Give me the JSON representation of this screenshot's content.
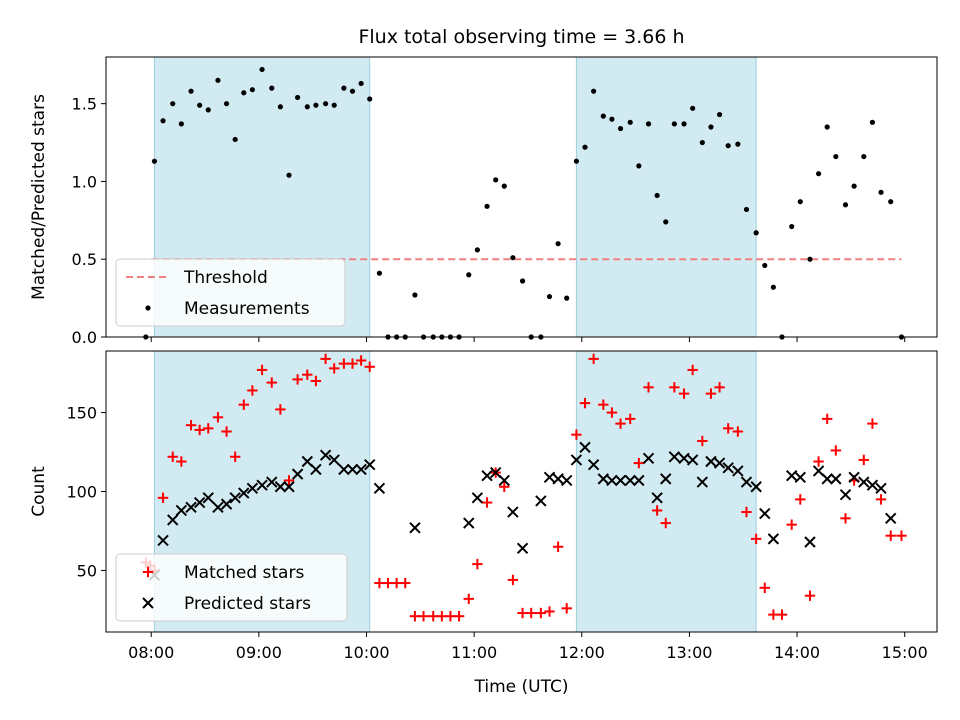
{
  "chart_data": [
    {
      "type": "scatter",
      "title": "Flux total observing time = 3.66 h",
      "xlabel": "",
      "ylabel": "Matched/Predicted stars",
      "xlim": [
        7.58,
        15.3
      ],
      "ylim": [
        0,
        1.8
      ],
      "yticks": [
        0.0,
        0.5,
        1.0,
        1.5
      ],
      "xticks": [
        8,
        9,
        10,
        11,
        12,
        13,
        14,
        15
      ],
      "xtick_labels": [
        "",
        "",
        "",
        "",
        "",
        "",
        "",
        ""
      ],
      "shaded_intervals": [
        [
          8.03,
          10.03
        ],
        [
          11.95,
          13.62
        ]
      ],
      "threshold": {
        "name": "Threshold",
        "y": 0.5,
        "x_range": [
          8.0,
          14.97
        ],
        "color": "#f08080"
      },
      "legend": {
        "placement": "lower-left",
        "entries": [
          "Threshold",
          "Measurements"
        ]
      },
      "series": [
        {
          "name": "Measurements",
          "color": "#000000",
          "marker": "dot",
          "points": [
            [
              7.95,
              0.0
            ],
            [
              8.03,
              1.13
            ],
            [
              8.11,
              1.39
            ],
            [
              8.2,
              1.5
            ],
            [
              8.28,
              1.37
            ],
            [
              8.37,
              1.58
            ],
            [
              8.45,
              1.49
            ],
            [
              8.53,
              1.46
            ],
            [
              8.62,
              1.65
            ],
            [
              8.7,
              1.5
            ],
            [
              8.78,
              1.27
            ],
            [
              8.86,
              1.57
            ],
            [
              8.94,
              1.59
            ],
            [
              9.03,
              1.72
            ],
            [
              9.12,
              1.6
            ],
            [
              9.2,
              1.48
            ],
            [
              9.28,
              1.04
            ],
            [
              9.36,
              1.54
            ],
            [
              9.45,
              1.48
            ],
            [
              9.53,
              1.49
            ],
            [
              9.62,
              1.5
            ],
            [
              9.7,
              1.49
            ],
            [
              9.79,
              1.6
            ],
            [
              9.87,
              1.58
            ],
            [
              9.95,
              1.63
            ],
            [
              10.03,
              1.53
            ],
            [
              10.12,
              0.41
            ],
            [
              10.2,
              0.0
            ],
            [
              10.28,
              0.0
            ],
            [
              10.36,
              0.0
            ],
            [
              10.45,
              0.27
            ],
            [
              10.53,
              0.0
            ],
            [
              10.62,
              0.0
            ],
            [
              10.7,
              0.0
            ],
            [
              10.78,
              0.0
            ],
            [
              10.86,
              0.0
            ],
            [
              10.95,
              0.4
            ],
            [
              11.03,
              0.56
            ],
            [
              11.12,
              0.84
            ],
            [
              11.2,
              1.01
            ],
            [
              11.28,
              0.97
            ],
            [
              11.36,
              0.51
            ],
            [
              11.45,
              0.36
            ],
            [
              11.53,
              0.0
            ],
            [
              11.62,
              0.0
            ],
            [
              11.7,
              0.26
            ],
            [
              11.78,
              0.6
            ],
            [
              11.86,
              0.25
            ],
            [
              11.95,
              1.13
            ],
            [
              12.03,
              1.22
            ],
            [
              12.11,
              1.58
            ],
            [
              12.2,
              1.42
            ],
            [
              12.28,
              1.4
            ],
            [
              12.36,
              1.34
            ],
            [
              12.45,
              1.38
            ],
            [
              12.53,
              1.1
            ],
            [
              12.62,
              1.37
            ],
            [
              12.7,
              0.91
            ],
            [
              12.78,
              0.74
            ],
            [
              12.86,
              1.37
            ],
            [
              12.95,
              1.37
            ],
            [
              13.03,
              1.47
            ],
            [
              13.12,
              1.25
            ],
            [
              13.2,
              1.35
            ],
            [
              13.28,
              1.43
            ],
            [
              13.36,
              1.23
            ],
            [
              13.45,
              1.24
            ],
            [
              13.53,
              0.82
            ],
            [
              13.62,
              0.67
            ],
            [
              13.7,
              0.46
            ],
            [
              13.78,
              0.32
            ],
            [
              13.86,
              0.0
            ],
            [
              13.95,
              0.71
            ],
            [
              14.03,
              0.87
            ],
            [
              14.12,
              0.5
            ],
            [
              14.2,
              1.05
            ],
            [
              14.28,
              1.35
            ],
            [
              14.36,
              1.16
            ],
            [
              14.45,
              0.85
            ],
            [
              14.53,
              0.97
            ],
            [
              14.62,
              1.16
            ],
            [
              14.7,
              1.38
            ],
            [
              14.78,
              0.93
            ],
            [
              14.87,
              0.87
            ],
            [
              14.97,
              0.0
            ]
          ]
        }
      ]
    },
    {
      "type": "scatter",
      "title": "",
      "xlabel": "Time (UTC)",
      "ylabel": "Count",
      "xlim": [
        7.58,
        15.3
      ],
      "ylim": [
        11,
        189
      ],
      "yticks": [
        50,
        100,
        150
      ],
      "xticks": [
        8,
        9,
        10,
        11,
        12,
        13,
        14,
        15
      ],
      "xtick_labels": [
        "08:00",
        "09:00",
        "10:00",
        "11:00",
        "12:00",
        "13:00",
        "14:00",
        "15:00"
      ],
      "shaded_intervals": [
        [
          8.03,
          10.03
        ],
        [
          11.95,
          13.62
        ]
      ],
      "legend": {
        "placement": "lower-left",
        "entries": [
          "Matched stars",
          "Predicted stars"
        ]
      },
      "series": [
        {
          "name": "Matched stars",
          "color": "#ff0000",
          "marker": "plus",
          "points": [
            [
              7.95,
              55
            ],
            [
              7.99,
              53
            ],
            [
              8.03,
              50
            ],
            [
              8.11,
              96
            ],
            [
              8.2,
              122
            ],
            [
              8.28,
              119
            ],
            [
              8.37,
              142
            ],
            [
              8.45,
              139
            ],
            [
              8.53,
              140
            ],
            [
              8.62,
              147
            ],
            [
              8.7,
              138
            ],
            [
              8.78,
              122
            ],
            [
              8.86,
              155
            ],
            [
              8.94,
              164
            ],
            [
              9.03,
              177
            ],
            [
              9.12,
              169
            ],
            [
              9.2,
              152
            ],
            [
              9.28,
              107
            ],
            [
              9.36,
              171
            ],
            [
              9.45,
              174
            ],
            [
              9.53,
              170
            ],
            [
              9.62,
              184
            ],
            [
              9.7,
              178
            ],
            [
              9.79,
              181
            ],
            [
              9.87,
              181
            ],
            [
              9.95,
              183
            ],
            [
              10.03,
              179
            ],
            [
              10.12,
              42
            ],
            [
              10.2,
              42
            ],
            [
              10.28,
              42
            ],
            [
              10.36,
              42
            ],
            [
              10.45,
              21
            ],
            [
              10.53,
              21
            ],
            [
              10.62,
              21
            ],
            [
              10.7,
              21
            ],
            [
              10.78,
              21
            ],
            [
              10.86,
              21
            ],
            [
              10.95,
              32
            ],
            [
              11.03,
              54
            ],
            [
              11.12,
              93
            ],
            [
              11.2,
              112
            ],
            [
              11.28,
              103
            ],
            [
              11.36,
              44
            ],
            [
              11.45,
              23
            ],
            [
              11.53,
              23
            ],
            [
              11.62,
              23
            ],
            [
              11.7,
              24
            ],
            [
              11.78,
              65
            ],
            [
              11.86,
              26
            ],
            [
              11.95,
              136
            ],
            [
              12.03,
              156
            ],
            [
              12.11,
              184
            ],
            [
              12.2,
              155
            ],
            [
              12.28,
              150
            ],
            [
              12.36,
              143
            ],
            [
              12.45,
              146
            ],
            [
              12.53,
              118
            ],
            [
              12.62,
              166
            ],
            [
              12.7,
              88
            ],
            [
              12.78,
              80
            ],
            [
              12.86,
              166
            ],
            [
              12.95,
              162
            ],
            [
              13.03,
              177
            ],
            [
              13.12,
              132
            ],
            [
              13.2,
              162
            ],
            [
              13.28,
              166
            ],
            [
              13.36,
              140
            ],
            [
              13.45,
              138
            ],
            [
              13.53,
              87
            ],
            [
              13.62,
              70
            ],
            [
              13.7,
              39
            ],
            [
              13.78,
              22
            ],
            [
              13.86,
              22
            ],
            [
              13.95,
              79
            ],
            [
              14.03,
              95
            ],
            [
              14.12,
              34
            ],
            [
              14.2,
              119
            ],
            [
              14.28,
              146
            ],
            [
              14.36,
              126
            ],
            [
              14.45,
              83
            ],
            [
              14.53,
              107
            ],
            [
              14.62,
              120
            ],
            [
              14.7,
              143
            ],
            [
              14.78,
              95
            ],
            [
              14.87,
              72
            ],
            [
              14.97,
              72
            ]
          ]
        },
        {
          "name": "Predicted stars",
          "color": "#000000",
          "marker": "x",
          "points": [
            [
              8.03,
              47
            ],
            [
              8.11,
              69
            ],
            [
              8.2,
              82
            ],
            [
              8.28,
              88
            ],
            [
              8.37,
              90
            ],
            [
              8.45,
              93
            ],
            [
              8.53,
              96
            ],
            [
              8.62,
              90
            ],
            [
              8.7,
              92
            ],
            [
              8.78,
              96
            ],
            [
              8.86,
              99
            ],
            [
              8.94,
              102
            ],
            [
              9.03,
              104
            ],
            [
              9.12,
              106
            ],
            [
              9.2,
              103
            ],
            [
              9.28,
              103
            ],
            [
              9.36,
              111
            ],
            [
              9.45,
              119
            ],
            [
              9.53,
              114
            ],
            [
              9.62,
              123
            ],
            [
              9.7,
              120
            ],
            [
              9.79,
              114
            ],
            [
              9.87,
              114
            ],
            [
              9.95,
              114
            ],
            [
              10.03,
              117
            ],
            [
              10.12,
              102
            ],
            [
              10.45,
              77
            ],
            [
              10.95,
              80
            ],
            [
              11.03,
              96
            ],
            [
              11.12,
              110
            ],
            [
              11.2,
              112
            ],
            [
              11.28,
              107
            ],
            [
              11.36,
              87
            ],
            [
              11.45,
              64
            ],
            [
              11.62,
              94
            ],
            [
              11.7,
              109
            ],
            [
              11.78,
              108
            ],
            [
              11.86,
              107
            ],
            [
              11.95,
              120
            ],
            [
              12.03,
              128
            ],
            [
              12.11,
              117
            ],
            [
              12.2,
              108
            ],
            [
              12.28,
              107
            ],
            [
              12.36,
              107
            ],
            [
              12.45,
              107
            ],
            [
              12.53,
              107
            ],
            [
              12.62,
              121
            ],
            [
              12.7,
              96
            ],
            [
              12.78,
              108
            ],
            [
              12.86,
              122
            ],
            [
              12.95,
              121
            ],
            [
              13.03,
              120
            ],
            [
              13.12,
              106
            ],
            [
              13.2,
              119
            ],
            [
              13.28,
              118
            ],
            [
              13.36,
              115
            ],
            [
              13.45,
              113
            ],
            [
              13.53,
              106
            ],
            [
              13.62,
              103
            ],
            [
              13.7,
              86
            ],
            [
              13.78,
              70
            ],
            [
              13.95,
              110
            ],
            [
              14.03,
              109
            ],
            [
              14.12,
              68
            ],
            [
              14.2,
              113
            ],
            [
              14.28,
              108
            ],
            [
              14.36,
              108
            ],
            [
              14.45,
              98
            ],
            [
              14.53,
              109
            ],
            [
              14.62,
              106
            ],
            [
              14.7,
              104
            ],
            [
              14.78,
              102
            ],
            [
              14.87,
              83
            ]
          ]
        }
      ]
    }
  ]
}
